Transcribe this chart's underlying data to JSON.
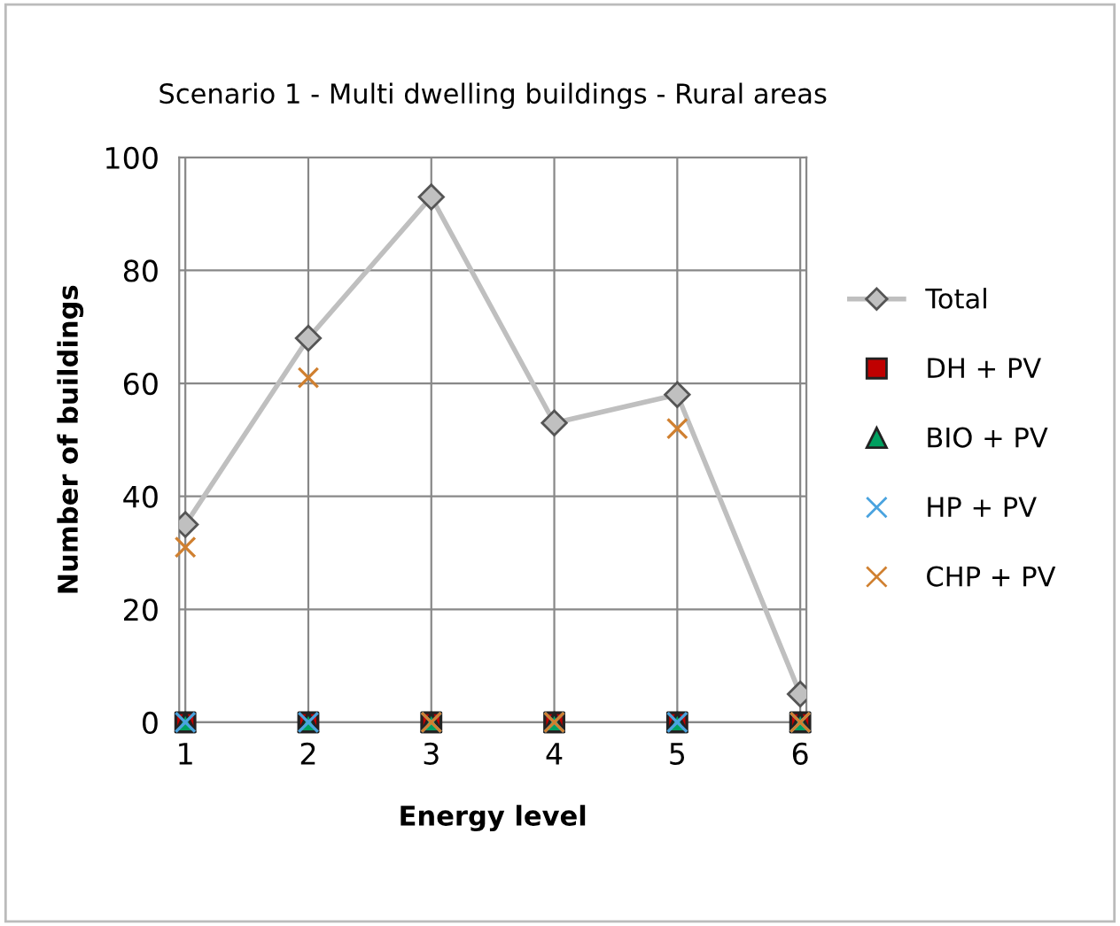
{
  "chart_data": {
    "type": "line",
    "title": "Scenario 1 - Multi dwelling buildings - Rural areas",
    "xlabel": "Energy level",
    "ylabel": "Number of buildings",
    "categories": [
      "1",
      "2",
      "3",
      "4",
      "5",
      "6"
    ],
    "series": [
      {
        "name": "Total",
        "color": "#bfbfbf",
        "marker": "diamond",
        "values": [
          35,
          68,
          93,
          53,
          58,
          5
        ]
      },
      {
        "name": "DH + PV",
        "type": "scatter",
        "color": "#c00000",
        "marker": "square",
        "values": [
          0,
          0,
          0,
          0,
          0,
          0
        ]
      },
      {
        "name": "BIO + PV",
        "type": "scatter",
        "color": "#00a060",
        "marker": "triangle",
        "values": [
          0,
          0,
          0,
          0,
          0,
          0
        ]
      },
      {
        "name": "HP + PV",
        "type": "scatter",
        "color": "#4aa3df",
        "marker": "cross",
        "values": [
          0,
          0,
          0,
          0,
          0,
          0
        ]
      },
      {
        "name": "CHP + PV",
        "type": "scatter",
        "color": "#d08030",
        "marker": "cross",
        "values": [
          31,
          61,
          0,
          0,
          52,
          0
        ]
      }
    ],
    "ylim": [
      0,
      100
    ],
    "yticks": [
      0,
      20,
      40,
      60,
      80,
      100
    ],
    "grid": true,
    "legend": "right"
  }
}
